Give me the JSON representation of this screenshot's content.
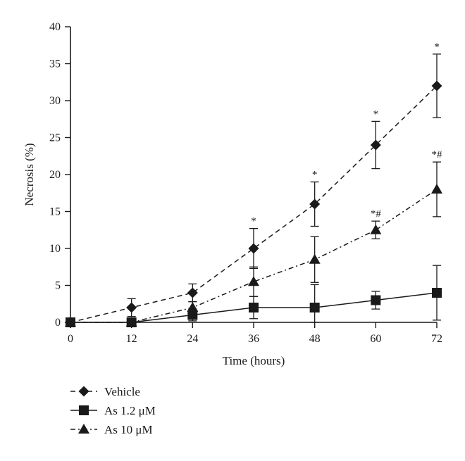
{
  "chart_data": {
    "type": "line",
    "title": "",
    "xlabel": "Time (hours)",
    "ylabel": "Necrosis (%)",
    "x": [
      0,
      12,
      24,
      36,
      48,
      60,
      72
    ],
    "xlim": [
      0,
      72
    ],
    "ylim": [
      0,
      40
    ],
    "xticks": [
      "0",
      "12",
      "24",
      "36",
      "48",
      "60",
      "72"
    ],
    "yticks": [
      "0",
      "5",
      "10",
      "15",
      "20",
      "25",
      "30",
      "35",
      "40"
    ],
    "grid": false,
    "legend_position": "bottom-left",
    "series": [
      {
        "name": "Vehicle",
        "marker": "diamond",
        "line": "dashed",
        "color": "#1a1a1a",
        "values": [
          0,
          2,
          4,
          10,
          16,
          24,
          32
        ],
        "errors": [
          0.5,
          1.2,
          1.2,
          2.7,
          3.0,
          3.2,
          4.3
        ],
        "annotations": [
          "",
          "",
          "",
          "*",
          "*",
          "*",
          "*"
        ]
      },
      {
        "name": "As 1.2 μM",
        "marker": "square",
        "line": "solid",
        "color": "#1a1a1a",
        "values": [
          0,
          0,
          1,
          2,
          2,
          3,
          4
        ],
        "errors": [
          0.3,
          0.3,
          0.8,
          1.5,
          3.1,
          1.2,
          3.7
        ],
        "annotations": [
          "",
          "",
          "",
          "",
          "",
          "",
          ""
        ]
      },
      {
        "name": "As 10 μM",
        "marker": "triangle",
        "line": "dashdot",
        "color": "#1a1a1a",
        "values": [
          0,
          0,
          2,
          5.5,
          8.5,
          12.5,
          18
        ],
        "errors": [
          0.3,
          0.3,
          0.8,
          2.0,
          3.1,
          1.2,
          3.7
        ],
        "annotations": [
          "",
          "",
          "",
          "",
          "",
          "*#",
          "*#"
        ]
      }
    ]
  }
}
